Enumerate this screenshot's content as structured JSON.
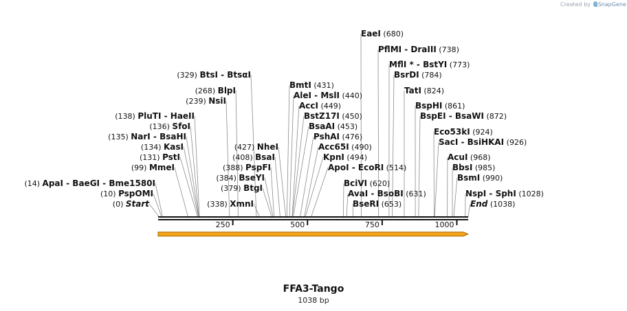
{
  "credit": {
    "prefix": "Created by",
    "brand": "SnapGene"
  },
  "plasmid": {
    "name": "FFA3-Tango",
    "size_label": "1038 bp",
    "length": 1038
  },
  "ruler_ticks": [
    {
      "pos": 250,
      "label": "250"
    },
    {
      "pos": 500,
      "label": "500"
    },
    {
      "pos": 750,
      "label": "750"
    },
    {
      "pos": 1000,
      "label": "1000"
    }
  ],
  "colors": {
    "feature_arrow": "#f2a21b",
    "feature_outline": "#a86b00",
    "backbone": "#111111"
  },
  "sites": [
    {
      "pos": 0,
      "num": "(0)",
      "names": [
        "Start"
      ],
      "italic": true
    },
    {
      "pos": 10,
      "num": "(10)",
      "names": [
        "PspOMI"
      ]
    },
    {
      "pos": 14,
      "num": "(14)",
      "names": [
        "ApaI",
        "BaeGI",
        "Bme1580I"
      ]
    },
    {
      "pos": 99,
      "num": "(99)",
      "names": [
        "MmeI"
      ]
    },
    {
      "pos": 131,
      "num": "(131)",
      "names": [
        "PstI"
      ]
    },
    {
      "pos": 134,
      "num": "(134)",
      "names": [
        "KasI"
      ]
    },
    {
      "pos": 135,
      "num": "(135)",
      "names": [
        "NarI",
        "BsaHI"
      ]
    },
    {
      "pos": 136,
      "num": "(136)",
      "names": [
        "SfoI"
      ]
    },
    {
      "pos": 138,
      "num": "(138)",
      "names": [
        "PluTI",
        "HaeII"
      ]
    },
    {
      "pos": 239,
      "num": "(239)",
      "names": [
        "NsiI"
      ]
    },
    {
      "pos": 268,
      "num": "(268)",
      "names": [
        "BlpI"
      ]
    },
    {
      "pos": 329,
      "num": "(329)",
      "names": [
        "BtsI",
        "BtsαI"
      ]
    },
    {
      "pos": 338,
      "num": "(338)",
      "names": [
        "XmnI"
      ]
    },
    {
      "pos": 379,
      "num": "(379)",
      "names": [
        "BtgI"
      ]
    },
    {
      "pos": 384,
      "num": "(384)",
      "names": [
        "BseYI"
      ]
    },
    {
      "pos": 388,
      "num": "(388)",
      "names": [
        "PspFI"
      ]
    },
    {
      "pos": 408,
      "num": "(408)",
      "names": [
        "BsaI"
      ]
    },
    {
      "pos": 427,
      "num": "(427)",
      "names": [
        "NheI"
      ]
    },
    {
      "pos": 431,
      "num": "(431)",
      "names": [
        "BmtI"
      ]
    },
    {
      "pos": 440,
      "num": "(440)",
      "names": [
        "AleI",
        "MslI"
      ]
    },
    {
      "pos": 449,
      "num": "(449)",
      "names": [
        "AccI"
      ]
    },
    {
      "pos": 450,
      "num": "(450)",
      "names": [
        "BstZ17I"
      ]
    },
    {
      "pos": 453,
      "num": "(453)",
      "names": [
        "BsaAI"
      ]
    },
    {
      "pos": 476,
      "num": "(476)",
      "names": [
        "PshAI"
      ]
    },
    {
      "pos": 490,
      "num": "(490)",
      "names": [
        "Acc65I"
      ]
    },
    {
      "pos": 494,
      "num": "(494)",
      "names": [
        "KpnI"
      ]
    },
    {
      "pos": 514,
      "num": "(514)",
      "names": [
        "ApoI",
        "EcoRI"
      ]
    },
    {
      "pos": 620,
      "num": "(620)",
      "names": [
        "BciVI"
      ]
    },
    {
      "pos": 631,
      "num": "(631)",
      "names": [
        "AvaI",
        "BsoBI"
      ]
    },
    {
      "pos": 653,
      "num": "(653)",
      "names": [
        "BseRI"
      ]
    },
    {
      "pos": 680,
      "num": "(680)",
      "names": [
        "EaeI"
      ]
    },
    {
      "pos": 738,
      "num": "(738)",
      "names": [
        "PflMI",
        "DraIII"
      ]
    },
    {
      "pos": 773,
      "num": "(773)",
      "names": [
        "MflI *",
        "BstYI"
      ]
    },
    {
      "pos": 784,
      "num": "(784)",
      "names": [
        "BsrDI"
      ]
    },
    {
      "pos": 824,
      "num": "(824)",
      "names": [
        "TatI"
      ]
    },
    {
      "pos": 861,
      "num": "(861)",
      "names": [
        "BspHI"
      ]
    },
    {
      "pos": 872,
      "num": "(872)",
      "names": [
        "BspEI",
        "BsaWI"
      ]
    },
    {
      "pos": 924,
      "num": "(924)",
      "names": [
        "Eco53kI"
      ]
    },
    {
      "pos": 926,
      "num": "(926)",
      "names": [
        "SacI",
        "BsiHKAI"
      ]
    },
    {
      "pos": 968,
      "num": "(968)",
      "names": [
        "AcuI"
      ]
    },
    {
      "pos": 985,
      "num": "(985)",
      "names": [
        "BbsI"
      ]
    },
    {
      "pos": 990,
      "num": "(990)",
      "names": [
        "BsmI"
      ]
    },
    {
      "pos": 1028,
      "num": "(1028)",
      "names": [
        "NspI",
        "SphI"
      ]
    },
    {
      "pos": 1038,
      "num": "(1038)",
      "names": [
        "End"
      ],
      "italic": true
    }
  ]
}
